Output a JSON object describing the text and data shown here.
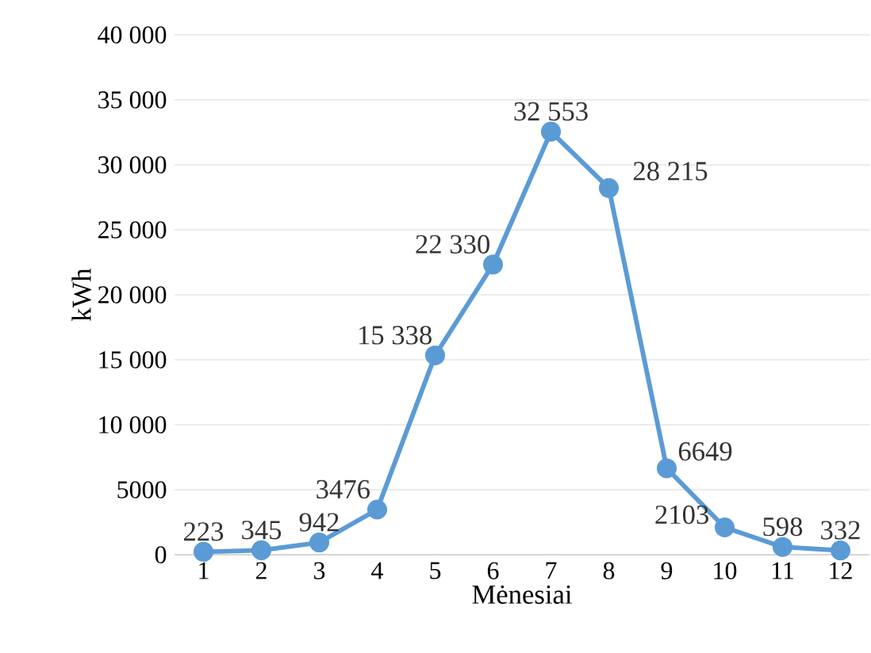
{
  "chart_data": {
    "type": "line",
    "xlabel": "Mėnesiai",
    "ylabel": "kWh",
    "categories": [
      "1",
      "2",
      "3",
      "4",
      "5",
      "6",
      "7",
      "8",
      "9",
      "10",
      "11",
      "12"
    ],
    "series": [
      {
        "color": "#5b9bd5",
        "values": [
          223,
          345,
          942,
          3476,
          15338,
          22330,
          32553,
          28215,
          6649,
          2103,
          598,
          332
        ],
        "value_labels": [
          "223",
          "345",
          "942",
          "3476",
          "15 338",
          "22 330",
          "32 553",
          "28 215",
          "6649",
          "2103",
          "598",
          "332"
        ]
      }
    ],
    "ylim": [
      0,
      40000
    ],
    "yticks": [
      0,
      5000,
      {
        "value": 10000,
        "label": "10 000"
      },
      {
        "value": 15000,
        "label": "15 000"
      },
      {
        "value": 20000,
        "label": "20 000"
      },
      {
        "value": 25000,
        "label": "25 000"
      },
      {
        "value": 30000,
        "label": "30 000"
      },
      {
        "value": 35000,
        "label": "35 000"
      },
      {
        "value": 40000,
        "label": "40 000"
      }
    ],
    "grid": "y",
    "marker": "circle",
    "line_style": "solid"
  }
}
